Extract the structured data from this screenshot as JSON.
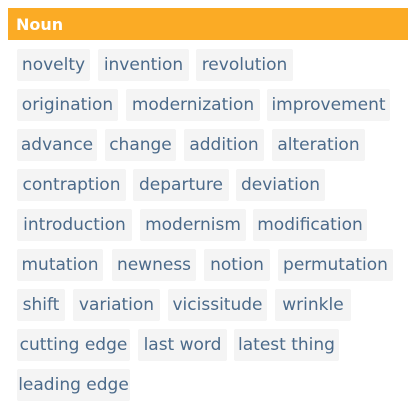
{
  "header": {
    "title": "Noun"
  },
  "tags": [
    "novelty",
    "invention",
    "revolution",
    "origination",
    "modernization",
    "improvement",
    "advance",
    "change",
    "addition",
    "alteration",
    "contraption",
    "departure",
    "deviation",
    "introduction",
    "modernism",
    "modification",
    "mutation",
    "newness",
    "notion",
    "permutation",
    "shift",
    "variation",
    "vicissitude",
    "wrinkle",
    "cutting edge",
    "last word",
    "latest thing",
    "leading edge"
  ],
  "colors": {
    "header_bg": "#fbab25",
    "tag_bg": "#f4f4f4",
    "tag_text": "#4b6a8a"
  }
}
